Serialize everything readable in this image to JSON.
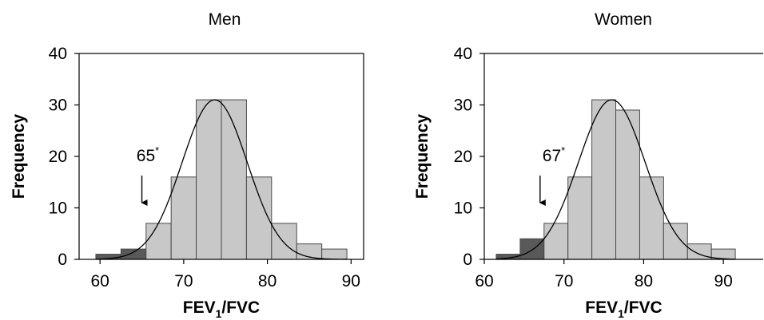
{
  "chart_data": [
    {
      "type": "bar",
      "title": "Men",
      "xlabel": "FEV1/FVC",
      "ylabel": "Frequency",
      "xlim": [
        57.5,
        91.5
      ],
      "ylim": [
        0,
        40
      ],
      "xticks": [
        60,
        70,
        80,
        90
      ],
      "yticks": [
        0,
        10,
        20,
        30,
        40
      ],
      "bin_edges": [
        59.5,
        62.5,
        65.5,
        68.5,
        71.5,
        74.5,
        77.5,
        80.5,
        83.5,
        86.5,
        89.5
      ],
      "values": [
        1,
        2,
        7,
        16,
        31,
        31,
        16,
        7,
        3,
        2
      ],
      "below_cutoff_bins": 2,
      "curve": {
        "mean": 73.7,
        "sd": 3.9,
        "peak": 31
      },
      "annotation": {
        "label": "65",
        "marker": "*",
        "x": 65
      }
    },
    {
      "type": "bar",
      "title": "Women",
      "xlabel": "FEV1/FVC",
      "ylabel": "Frequency",
      "xlim": [
        60,
        95
      ],
      "ylim": [
        0,
        40
      ],
      "xticks": [
        60,
        70,
        80,
        90
      ],
      "yticks": [
        0,
        10,
        20,
        30,
        40
      ],
      "bin_edges": [
        61.5,
        64.5,
        67.5,
        70.5,
        73.5,
        76.5,
        79.5,
        82.5,
        85.5,
        88.5,
        91.5
      ],
      "values": [
        1,
        4,
        7,
        16,
        31,
        29,
        16,
        7,
        3,
        2
      ],
      "below_cutoff_bins": 2,
      "curve": {
        "mean": 76,
        "sd": 4.2,
        "peak": 31
      },
      "annotation": {
        "label": "67",
        "marker": "*",
        "x": 67
      }
    }
  ],
  "colors": {
    "bar": "#c8c8c8",
    "bar_below_cutoff": "#595959",
    "bar_stroke": "#4a4a4a",
    "axis": "#000000",
    "curve": "#000000"
  }
}
